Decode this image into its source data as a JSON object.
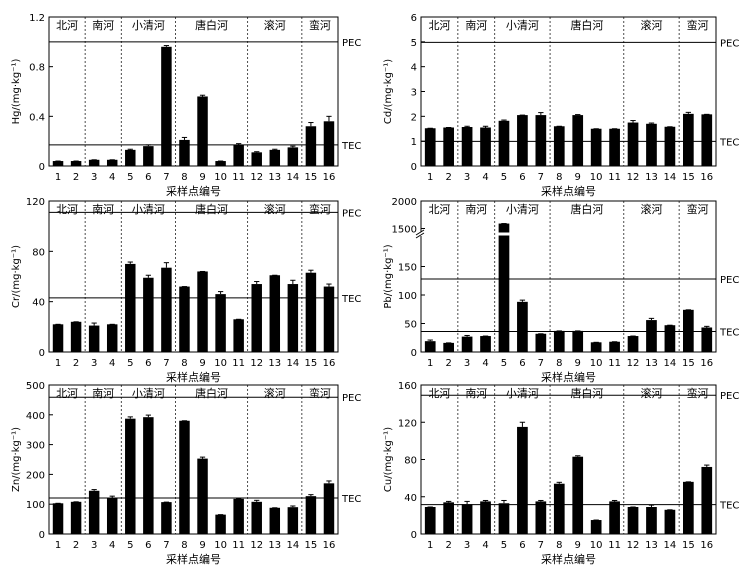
{
  "figure": {
    "xlabel": "采样点编号",
    "rivers": [
      "北河",
      "南河",
      "小清河",
      "唐白河",
      "滚河",
      "蛮河"
    ],
    "sites": [
      "1",
      "2",
      "3",
      "4",
      "5",
      "6",
      "7",
      "8",
      "9",
      "10",
      "11",
      "12",
      "13",
      "14",
      "15",
      "16"
    ],
    "pec_label": "PEC",
    "tec_label": "TEC"
  },
  "chart_data": [
    {
      "type": "bar",
      "ylabel": "Hg/(mg·kg⁻¹)",
      "categories": [
        "1",
        "2",
        "3",
        "4",
        "5",
        "6",
        "7",
        "8",
        "9",
        "10",
        "11",
        "12",
        "13",
        "14",
        "15",
        "16"
      ],
      "values": [
        0.04,
        0.04,
        0.05,
        0.05,
        0.13,
        0.16,
        0.96,
        0.21,
        0.56,
        0.04,
        0.17,
        0.11,
        0.13,
        0.15,
        0.32,
        0.36
      ],
      "errors": [
        0,
        0,
        0,
        0,
        0.005,
        0.01,
        0.01,
        0.02,
        0.01,
        0,
        0.01,
        0.005,
        0.005,
        0.01,
        0.03,
        0.04
      ],
      "ylim": [
        0,
        1.2
      ],
      "yticks": [
        0,
        0.4,
        0.8,
        1.2
      ],
      "yticklabels": [
        "0",
        "0.4",
        "0.8",
        "1.2"
      ],
      "pec": 1.0,
      "tec": 0.17
    },
    {
      "type": "bar",
      "ylabel": "Cd/(mg·kg⁻¹)",
      "categories": [
        "1",
        "2",
        "3",
        "4",
        "5",
        "6",
        "7",
        "8",
        "9",
        "10",
        "11",
        "12",
        "13",
        "14",
        "15",
        "16"
      ],
      "values": [
        1.52,
        1.55,
        1.57,
        1.55,
        1.82,
        2.05,
        2.05,
        1.6,
        2.05,
        1.5,
        1.5,
        1.75,
        1.7,
        1.58,
        2.1,
        2.08
      ],
      "errors": [
        0,
        0,
        0.03,
        0.05,
        0.03,
        0,
        0.1,
        0,
        0.02,
        0,
        0,
        0.08,
        0.03,
        0,
        0.06,
        0
      ],
      "ylim": [
        0,
        6
      ],
      "yticks": [
        0,
        1,
        2,
        3,
        4,
        5,
        6
      ],
      "yticklabels": [
        "0",
        "1",
        "2",
        "3",
        "4",
        "5",
        "6"
      ],
      "pec": 4.98,
      "tec": 0.99
    },
    {
      "type": "bar",
      "ylabel": "Cr/(mg·kg⁻¹)",
      "categories": [
        "1",
        "2",
        "3",
        "4",
        "5",
        "6",
        "7",
        "8",
        "9",
        "10",
        "11",
        "12",
        "13",
        "14",
        "15",
        "16"
      ],
      "values": [
        22,
        24,
        21,
        22,
        70,
        59,
        67,
        52,
        64,
        46,
        26,
        54,
        61,
        54,
        63,
        52
      ],
      "errors": [
        0,
        0,
        2,
        0,
        1.5,
        2,
        4,
        0,
        0,
        2,
        0,
        2,
        0,
        3,
        2,
        2
      ],
      "ylim": [
        0,
        120
      ],
      "yticks": [
        0,
        40,
        80,
        120
      ],
      "yticklabels": [
        "0",
        "40",
        "80",
        "120"
      ],
      "pec": 111,
      "tec": 43
    },
    {
      "type": "bar",
      "ylabel": "Pb/(mg·kg⁻¹)",
      "categories": [
        "1",
        "2",
        "3",
        "4",
        "5",
        "6",
        "7",
        "8",
        "9",
        "10",
        "11",
        "12",
        "13",
        "14",
        "15",
        "16"
      ],
      "values": [
        19,
        16,
        27,
        28,
        1590,
        88,
        32,
        37,
        37,
        17,
        18,
        28,
        56,
        47,
        74,
        43
      ],
      "errors": [
        2,
        0,
        2,
        0,
        0,
        3,
        0,
        0,
        0,
        0,
        0,
        0,
        3,
        0,
        0,
        2
      ],
      "ylim": [
        0,
        2000
      ],
      "yticks": [
        0,
        50,
        100,
        150,
        1500,
        2000
      ],
      "yticklabels": [
        "0",
        "50",
        "100",
        "150",
        "1500",
        "2000"
      ],
      "axis_break": [
        200,
        1400
      ],
      "pec": 128,
      "tec": 36
    },
    {
      "type": "bar",
      "ylabel": "Zn/(mg·kg⁻¹)",
      "categories": [
        "1",
        "2",
        "3",
        "4",
        "5",
        "6",
        "7",
        "8",
        "9",
        "10",
        "11",
        "12",
        "13",
        "14",
        "15",
        "16"
      ],
      "values": [
        103,
        108,
        145,
        122,
        387,
        392,
        107,
        380,
        253,
        65,
        118,
        108,
        88,
        90,
        127,
        170
      ],
      "errors": [
        0,
        0,
        4,
        5,
        6,
        7,
        0,
        0,
        5,
        0,
        0,
        5,
        0,
        4,
        5,
        8
      ],
      "ylim": [
        0,
        500
      ],
      "yticks": [
        0,
        100,
        200,
        300,
        400,
        500
      ],
      "yticklabels": [
        "0",
        "100",
        "200",
        "300",
        "400",
        "500"
      ],
      "pec": 459,
      "tec": 121
    },
    {
      "type": "bar",
      "ylabel": "Cu/(mg·kg⁻¹)",
      "categories": [
        "1",
        "2",
        "3",
        "4",
        "5",
        "6",
        "7",
        "8",
        "9",
        "10",
        "11",
        "12",
        "13",
        "14",
        "15",
        "16"
      ],
      "values": [
        29,
        34,
        32,
        35,
        33,
        115,
        35,
        54,
        83,
        15,
        35,
        29,
        29,
        26,
        56,
        72
      ],
      "errors": [
        0,
        1,
        3,
        1,
        3,
        5,
        1,
        1.5,
        1,
        0,
        1,
        0,
        2,
        0,
        0,
        2
      ],
      "ylim": [
        0,
        160
      ],
      "yticks": [
        0,
        40,
        80,
        120,
        160
      ],
      "yticklabels": [
        "0",
        "40",
        "80",
        "120",
        "160"
      ],
      "pec": 149,
      "tec": 31.6
    }
  ]
}
